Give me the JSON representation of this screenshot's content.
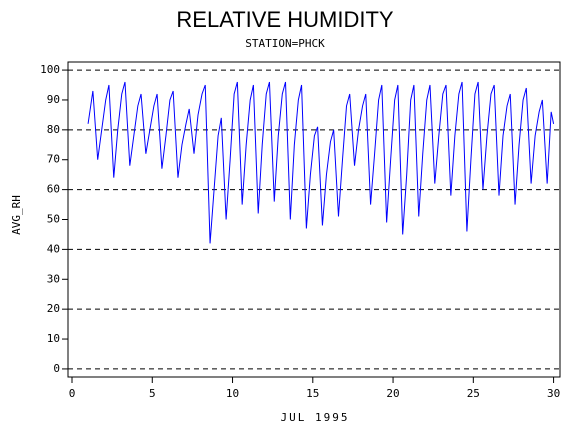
{
  "chart_data": {
    "type": "line",
    "title": "RELATIVE HUMIDITY",
    "subtitle": "STATION=PHCK",
    "x_label": "JUL 1995",
    "y_label": "AVG_RH",
    "color": "#0000ff",
    "grid": true,
    "xlim": [
      -0.25,
      30.4
    ],
    "ylim": [
      -2.7,
      102.7
    ],
    "xticks": [
      0,
      5,
      10,
      15,
      20,
      25,
      30
    ],
    "yticks": [
      0,
      10,
      20,
      30,
      40,
      50,
      60,
      70,
      80,
      90,
      100
    ],
    "gridlines": [
      0,
      20,
      40,
      60,
      80,
      100
    ],
    "x": [
      1.0,
      1.3,
      1.6,
      1.85,
      2.1,
      2.3,
      2.6,
      2.85,
      3.1,
      3.3,
      3.6,
      3.85,
      4.1,
      4.3,
      4.6,
      4.85,
      5.1,
      5.3,
      5.6,
      5.85,
      6.1,
      6.3,
      6.6,
      6.85,
      7.1,
      7.3,
      7.6,
      7.85,
      8.1,
      8.3,
      8.6,
      8.85,
      9.1,
      9.3,
      9.6,
      9.85,
      10.1,
      10.3,
      10.6,
      10.85,
      11.1,
      11.3,
      11.6,
      11.85,
      12.1,
      12.3,
      12.6,
      12.85,
      13.1,
      13.3,
      13.6,
      13.85,
      14.1,
      14.3,
      14.6,
      14.85,
      15.1,
      15.3,
      15.6,
      15.85,
      16.1,
      16.3,
      16.6,
      16.85,
      17.1,
      17.3,
      17.6,
      17.85,
      18.1,
      18.3,
      18.6,
      18.85,
      19.1,
      19.3,
      19.6,
      19.85,
      20.1,
      20.3,
      20.6,
      20.85,
      21.1,
      21.3,
      21.6,
      21.85,
      22.1,
      22.3,
      22.6,
      22.85,
      23.1,
      23.3,
      23.6,
      23.85,
      24.1,
      24.3,
      24.6,
      24.85,
      25.1,
      25.3,
      25.6,
      25.85,
      26.1,
      26.3,
      26.6,
      26.85,
      27.1,
      27.3,
      27.6,
      27.85,
      28.1,
      28.3,
      28.6,
      28.85,
      29.1,
      29.3,
      29.6,
      29.85,
      30.0
    ],
    "values": [
      82,
      93,
      70,
      80,
      90,
      95,
      64,
      80,
      92,
      96,
      68,
      78,
      88,
      92,
      72,
      80,
      88,
      92,
      67,
      78,
      90,
      93,
      64,
      75,
      82,
      87,
      72,
      85,
      92,
      95,
      42,
      60,
      78,
      84,
      50,
      70,
      92,
      96,
      55,
      75,
      90,
      95,
      52,
      75,
      92,
      96,
      56,
      78,
      92,
      96,
      50,
      75,
      90,
      95,
      47,
      65,
      78,
      81,
      48,
      65,
      76,
      80,
      51,
      70,
      88,
      92,
      68,
      80,
      88,
      92,
      55,
      72,
      90,
      95,
      49,
      70,
      90,
      95,
      45,
      65,
      90,
      95,
      51,
      72,
      90,
      95,
      62,
      78,
      92,
      95,
      58,
      78,
      92,
      96,
      46,
      70,
      92,
      96,
      60,
      78,
      92,
      95,
      58,
      78,
      88,
      92,
      55,
      75,
      90,
      94,
      62,
      78,
      86,
      90,
      62,
      86,
      82
    ]
  }
}
